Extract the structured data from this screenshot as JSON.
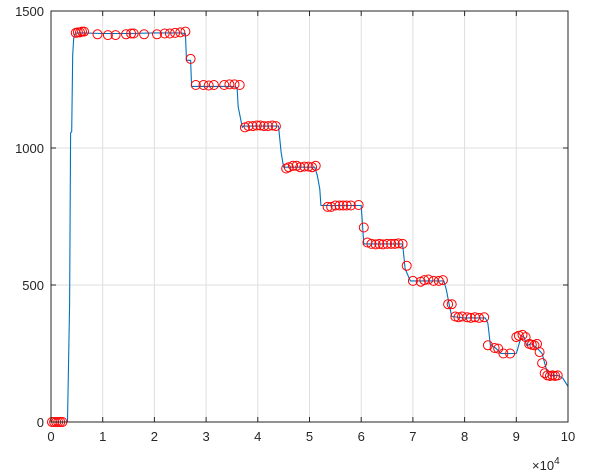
{
  "chart_data": {
    "type": "line",
    "title": "",
    "xlabel": "",
    "ylabel": "",
    "x_exponent_label": "×10",
    "x_exponent_power": "4",
    "xlim": [
      0,
      10
    ],
    "ylim": [
      0,
      1500
    ],
    "grid": true,
    "x_ticks": [
      0,
      1,
      2,
      3,
      4,
      5,
      6,
      7,
      8,
      9,
      10
    ],
    "y_ticks": [
      0,
      500,
      1000,
      1500
    ],
    "colors": {
      "line": "#0072BD",
      "markers": "#FF0000",
      "grid": "#DFDFDF",
      "axes": "#262626"
    },
    "series": [
      {
        "style": "line",
        "color": "#0072BD",
        "x": [
          0,
          0.3,
          0.32,
          0.36,
          0.38,
          0.4,
          0.42,
          0.44,
          0.46,
          0.5,
          0.6,
          1.0,
          1.5,
          2.0,
          2.5,
          2.6,
          2.62,
          2.7,
          2.72,
          3.0,
          3.5,
          3.6,
          3.62,
          3.7,
          3.72,
          4.0,
          4.4,
          4.45,
          4.5,
          4.52,
          5.0,
          5.1,
          5.15,
          5.2,
          5.22,
          5.5,
          5.9,
          5.95,
          6.0,
          6.05,
          6.5,
          6.75,
          6.8,
          6.85,
          6.95,
          7.0,
          7.6,
          7.65,
          7.7,
          7.75,
          8.0,
          8.4,
          8.45,
          8.5,
          8.6,
          8.7,
          8.8,
          9.0,
          9.1,
          9.15,
          9.2,
          9.3,
          9.4,
          9.5,
          9.55,
          9.6,
          9.65,
          9.7,
          9.8,
          9.9,
          10.0
        ],
        "y": [
          0,
          0,
          0,
          430,
          1055,
          1060,
          1340,
          1400,
          1415,
          1420,
          1420,
          1418,
          1418,
          1420,
          1420,
          1418,
          1320,
          1320,
          1225,
          1225,
          1225,
          1220,
          1150,
          1075,
          1080,
          1080,
          1080,
          985,
          930,
          930,
          930,
          930,
          900,
          850,
          790,
          790,
          790,
          790,
          790,
          650,
          650,
          650,
          650,
          560,
          515,
          515,
          515,
          480,
          430,
          385,
          380,
          380,
          360,
          280,
          270,
          250,
          250,
          250,
          315,
          310,
          280,
          285,
          270,
          250,
          215,
          180,
          170,
          170,
          170,
          160,
          130
        ]
      },
      {
        "style": "scatter",
        "color": "#FF0000",
        "x": [
          0.02,
          0.06,
          0.1,
          0.14,
          0.18,
          0.22,
          0.48,
          0.52,
          0.56,
          0.6,
          0.64,
          0.9,
          1.1,
          1.25,
          1.45,
          1.55,
          1.6,
          1.8,
          2.05,
          2.2,
          2.3,
          2.4,
          2.5,
          2.6,
          2.7,
          2.8,
          2.95,
          3.05,
          3.15,
          3.35,
          3.45,
          3.55,
          3.65,
          3.75,
          3.82,
          3.9,
          3.98,
          4.05,
          4.12,
          4.2,
          4.28,
          4.35,
          4.55,
          4.6,
          4.68,
          4.75,
          4.82,
          4.9,
          4.98,
          5.05,
          5.12,
          5.35,
          5.42,
          5.5,
          5.58,
          5.65,
          5.72,
          5.8,
          5.95,
          6.05,
          6.12,
          6.2,
          6.28,
          6.35,
          6.42,
          6.5,
          6.58,
          6.65,
          6.72,
          6.8,
          6.88,
          7.0,
          7.15,
          7.22,
          7.3,
          7.4,
          7.5,
          7.58,
          7.68,
          7.75,
          7.82,
          7.88,
          7.95,
          8.05,
          8.12,
          8.2,
          8.28,
          8.38,
          8.45,
          8.58,
          8.65,
          8.75,
          8.88,
          9.0,
          9.05,
          9.12,
          9.18,
          9.25,
          9.3,
          9.35,
          9.4,
          9.45,
          9.5,
          9.55,
          9.6,
          9.65,
          9.7,
          9.75,
          9.8
        ],
        "y": [
          0,
          0,
          0,
          0,
          0,
          0,
          1420,
          1422,
          1422,
          1425,
          1425,
          1415,
          1412,
          1412,
          1415,
          1418,
          1418,
          1415,
          1415,
          1418,
          1418,
          1420,
          1422,
          1425,
          1325,
          1230,
          1230,
          1228,
          1230,
          1230,
          1232,
          1232,
          1230,
          1075,
          1080,
          1080,
          1082,
          1082,
          1080,
          1080,
          1082,
          1080,
          925,
          930,
          935,
          935,
          930,
          932,
          932,
          930,
          935,
          785,
          785,
          790,
          790,
          790,
          790,
          790,
          792,
          710,
          655,
          650,
          648,
          650,
          648,
          650,
          650,
          650,
          652,
          650,
          570,
          515,
          512,
          518,
          520,
          515,
          515,
          518,
          430,
          430,
          385,
          382,
          385,
          382,
          380,
          382,
          380,
          382,
          280,
          270,
          268,
          250,
          250,
          310,
          315,
          318,
          310,
          285,
          282,
          280,
          285,
          255,
          215,
          178,
          170,
          168,
          170,
          168,
          170
        ]
      }
    ]
  }
}
